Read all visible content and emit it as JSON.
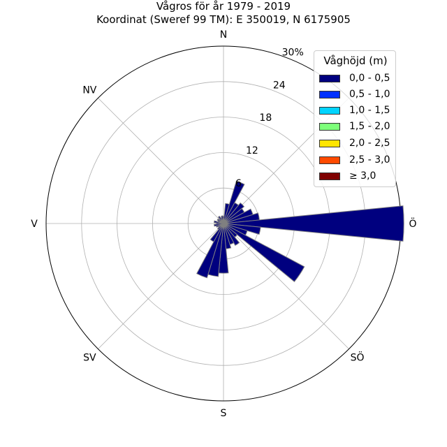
{
  "title": "Vågros för år 1979 - 2019",
  "subtitle": "Koordinat (Sweref 99 TM): E 350019, N 6175905",
  "chart_data": {
    "type": "polar-bar",
    "title": "Vågros för år 1979 - 2019",
    "subtitle": "Koordinat (Sweref 99 TM): E 350019, N 6175905",
    "radial_unit": "%",
    "rmax": 30,
    "radial_ticks": [
      "6",
      "12",
      "18",
      "24",
      "30%"
    ],
    "direction_labels": [
      {
        "label": "N",
        "angle": 0
      },
      {
        "label": "NV",
        "angle": 315
      },
      {
        "label": "V",
        "angle": 270
      },
      {
        "label": "SV",
        "angle": 225
      },
      {
        "label": "S",
        "angle": 180
      },
      {
        "label": "SÖ",
        "angle": 135
      },
      {
        "label": "Ö",
        "angle": 90
      }
    ],
    "directions_deg": [
      0,
      11.25,
      22.5,
      33.75,
      45,
      56.25,
      67.5,
      78.75,
      90,
      101.25,
      112.5,
      123.75,
      135,
      146.25,
      157.5,
      168.75,
      180,
      191.25,
      202.5,
      213.75,
      225,
      236.25,
      247.5,
      258.75,
      270,
      281.25,
      292.5,
      303.75,
      315,
      326.25,
      337.5,
      348.75
    ],
    "series": [
      {
        "name": "0,0 - 0,5",
        "color": "#00007f",
        "values": [
          1.2,
          3.4,
          7.5,
          4.0,
          4.5,
          4.0,
          5.2,
          6.1,
          30.5,
          6.3,
          4.2,
          15.5,
          3.0,
          4.2,
          3.7,
          4.3,
          8.4,
          9.0,
          9.6,
          3.5,
          1.3,
          1.0,
          1.3,
          1.6,
          1.2,
          1.6,
          1.0,
          1.2,
          1.0,
          1.4,
          1.1,
          1.3
        ]
      },
      {
        "name": "0,5 - 1,0",
        "color": "#0030ff",
        "values": [
          0,
          0,
          0,
          0,
          0,
          0,
          0,
          0,
          0,
          0,
          0,
          0,
          0,
          0,
          0,
          0,
          0,
          0,
          0,
          0,
          0,
          0,
          0,
          0,
          0,
          0,
          0,
          0,
          0,
          0,
          0,
          0
        ]
      },
      {
        "name": "1,0 - 1,5",
        "color": "#00d4ff",
        "values": [
          0,
          0,
          0,
          0,
          0,
          0,
          0,
          0,
          0,
          0,
          0,
          0,
          0,
          0,
          0,
          0,
          0,
          0,
          0,
          0,
          0,
          0,
          0,
          0,
          0,
          0,
          0,
          0,
          0,
          0,
          0,
          0
        ]
      },
      {
        "name": "1,5 - 2,0",
        "color": "#7dff7a",
        "values": [
          0,
          0,
          0,
          0,
          0,
          0,
          0,
          0,
          0,
          0,
          0,
          0,
          0,
          0,
          0,
          0,
          0,
          0,
          0,
          0,
          0,
          0,
          0,
          0,
          0,
          0,
          0,
          0,
          0,
          0,
          0,
          0
        ]
      },
      {
        "name": "2,0 - 2,5",
        "color": "#ffe500",
        "values": [
          0,
          0,
          0,
          0,
          0,
          0,
          0,
          0,
          0,
          0,
          0,
          0,
          0,
          0,
          0,
          0,
          0,
          0,
          0,
          0,
          0,
          0,
          0,
          0,
          0,
          0,
          0,
          0,
          0,
          0,
          0,
          0
        ]
      },
      {
        "name": "2,5 - 3,0",
        "color": "#ff4a00",
        "values": [
          0,
          0,
          0,
          0,
          0,
          0,
          0,
          0,
          0,
          0,
          0,
          0,
          0,
          0,
          0,
          0,
          0,
          0,
          0,
          0,
          0,
          0,
          0,
          0,
          0,
          0,
          0,
          0,
          0,
          0,
          0,
          0
        ]
      },
      {
        "name": "≥ 3,0",
        "color": "#7f0000",
        "values": [
          0,
          0,
          0,
          0,
          0,
          0,
          0,
          0,
          0,
          0,
          0,
          0,
          0,
          0,
          0,
          0,
          0,
          0,
          0,
          0,
          0,
          0,
          0,
          0,
          0,
          0,
          0,
          0,
          0,
          0,
          0,
          0
        ]
      }
    ],
    "legend": {
      "title": "Våghöjd (m)",
      "placement": "top-right"
    },
    "grid": true
  }
}
